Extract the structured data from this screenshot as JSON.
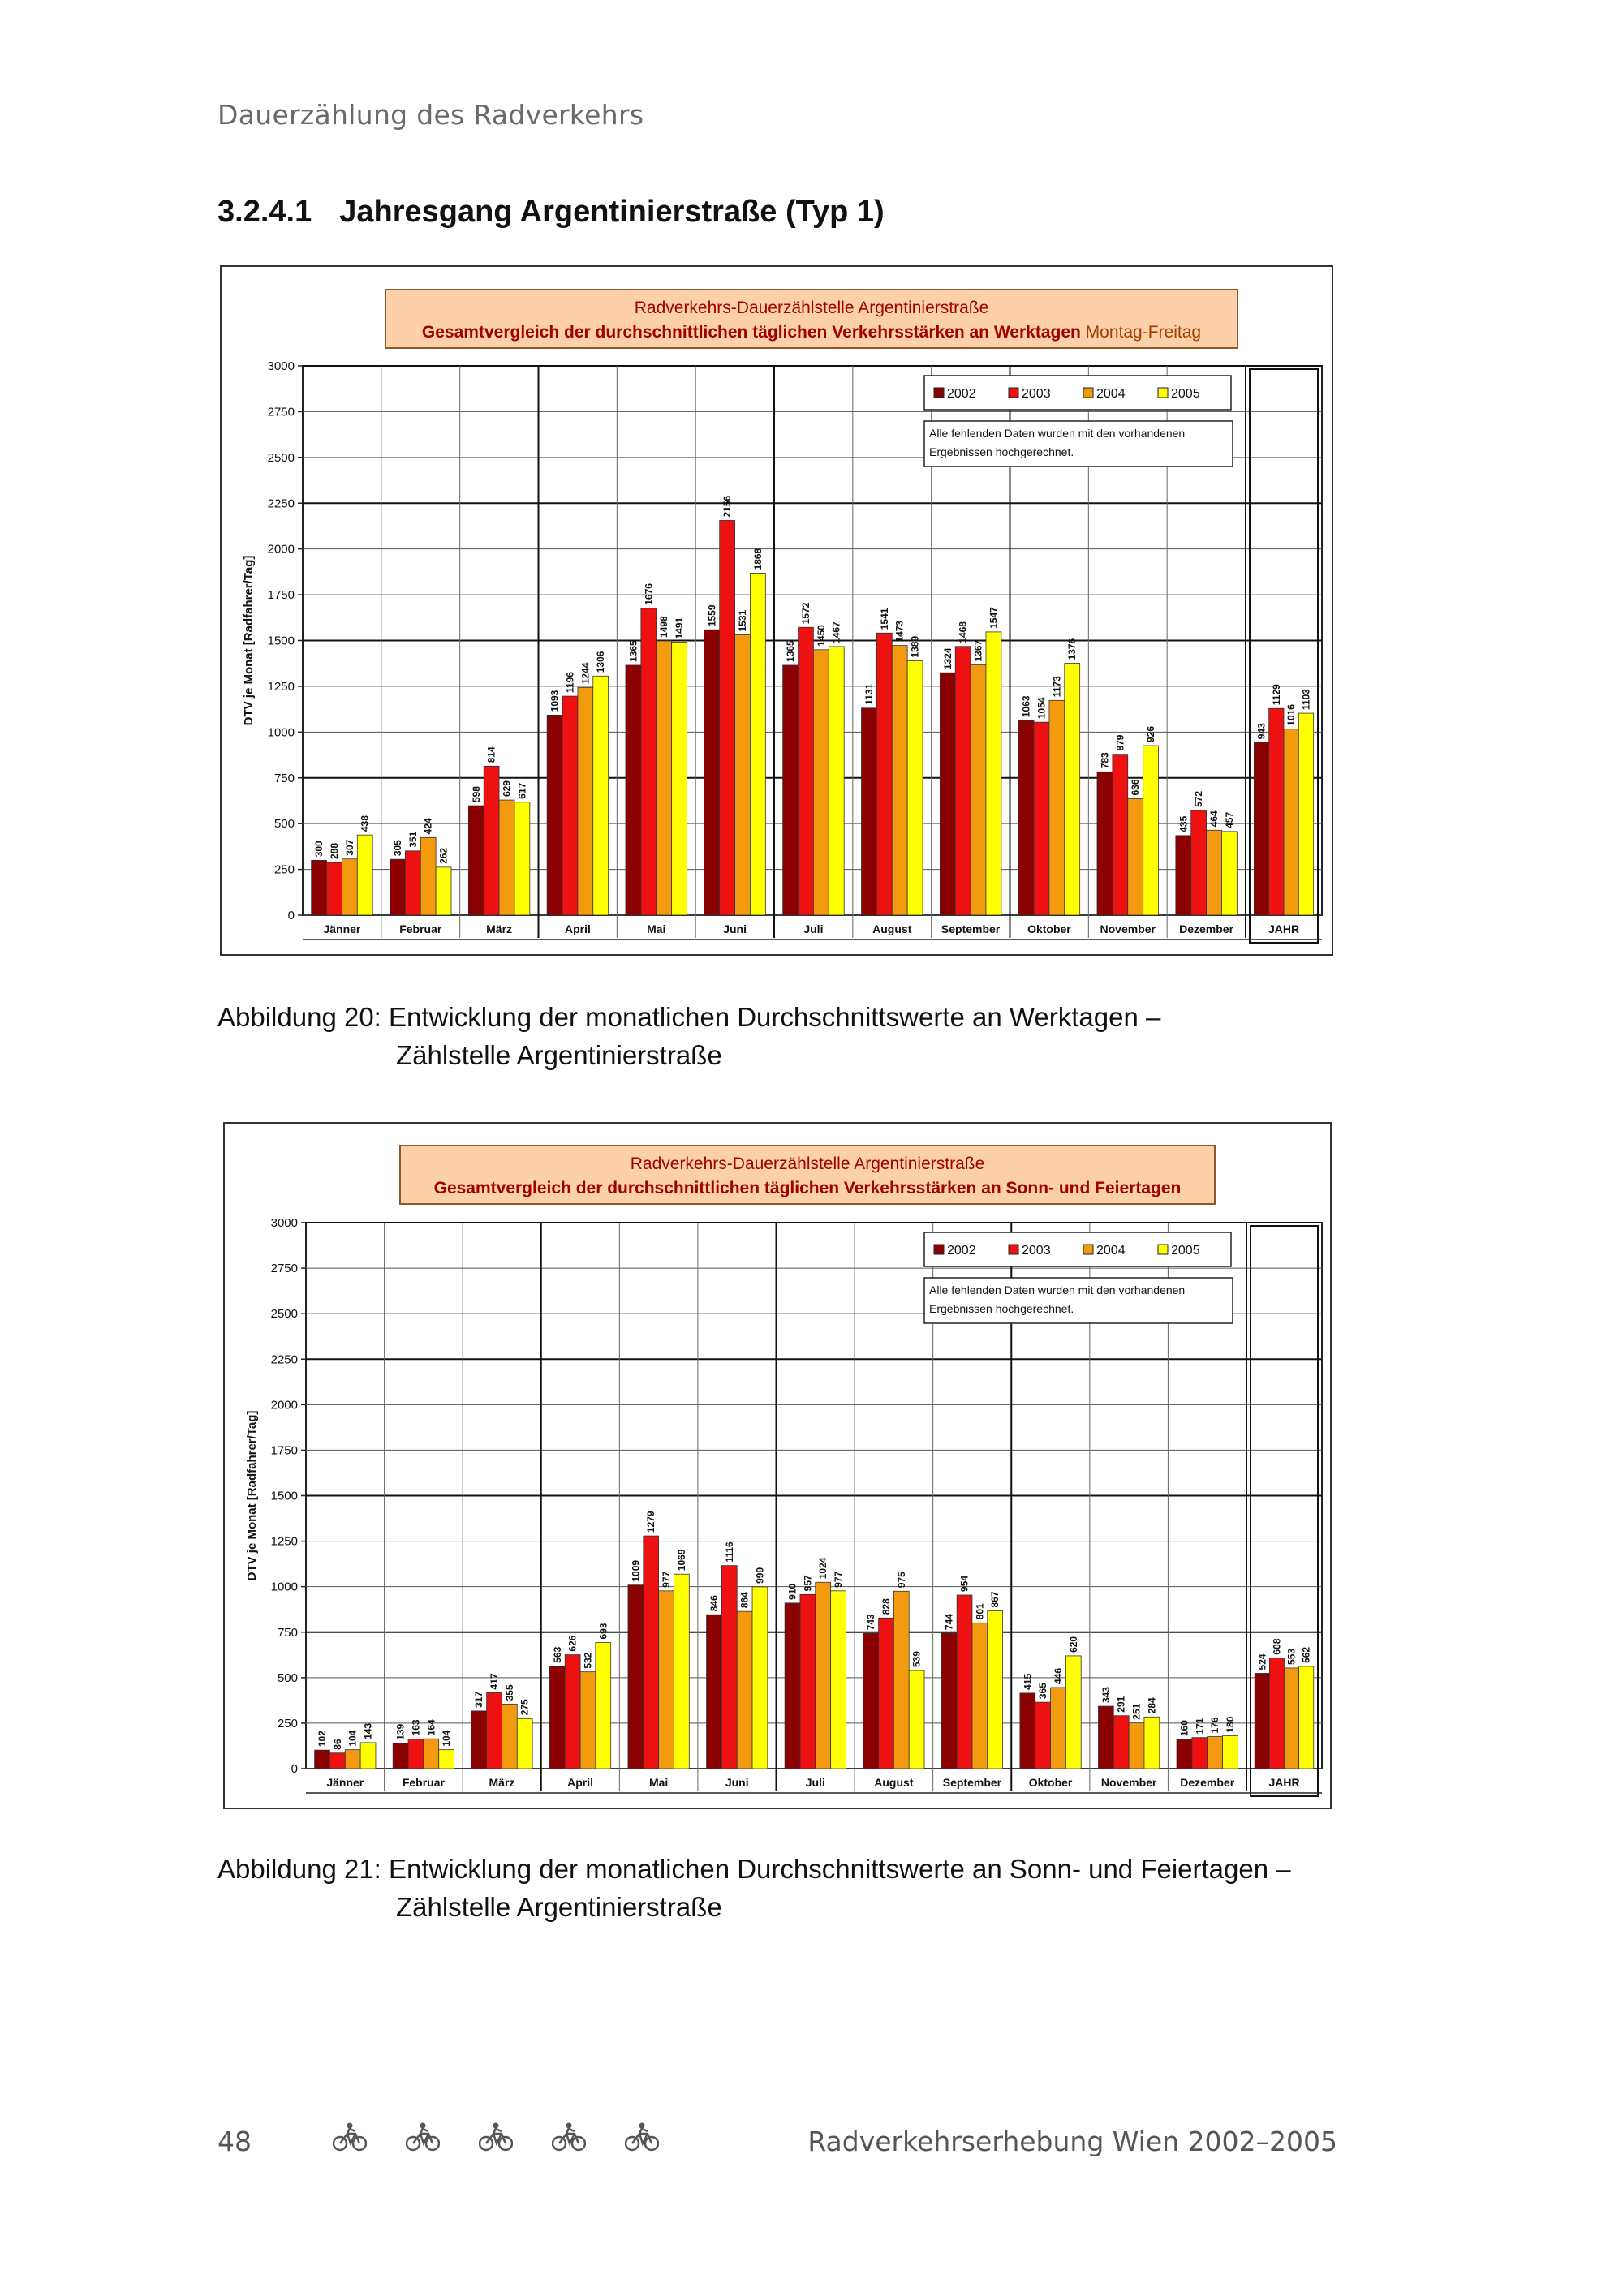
{
  "header": {
    "running_title": "Dauerzählung des Radverkehrs"
  },
  "section": {
    "number": "3.2.4.1",
    "title": "Jahresgang Argentinierstraße (Typ 1)"
  },
  "figures": [
    {
      "caption_line1": "Abbildung 20: Entwicklung der monatlichen Durchschnittswerte an Werktagen –",
      "caption_line2": "Zählstelle Argentinierstraße",
      "chart_data": {
        "type": "bar",
        "title": "Radverkehrs-Dauerzählstelle Argentinierstraße",
        "subtitle": "Gesamtvergleich der durchschnittlichen täglichen Verkehrsstärken an Werktagen",
        "subtitle_suffix": " Montag-Freitag",
        "ylabel": "DTV je Monat  [Radfahrer/Tag]",
        "xlabel": "",
        "ylim": [
          0,
          3000
        ],
        "yticks": [
          0,
          250,
          500,
          750,
          1000,
          1250,
          1500,
          1750,
          2000,
          2250,
          2500,
          2750,
          3000
        ],
        "categories": [
          "Jänner",
          "Februar",
          "März",
          "April",
          "Mai",
          "Juni",
          "Juli",
          "August",
          "September",
          "Oktober",
          "November",
          "Dezember",
          "JAHR"
        ],
        "note": [
          "Alle fehlenden Daten wurden mit den vorhandenen",
          "Ergebnissen hochgerechnet."
        ],
        "legend_position": "top-right",
        "series": [
          {
            "name": "2002",
            "color": "#8b0000",
            "values": [
              300,
              305,
              598,
              1093,
              1365,
              1559,
              1365,
              1131,
              1324,
              1063,
              783,
              435,
              943
            ]
          },
          {
            "name": "2003",
            "color": "#ee1111",
            "values": [
              288,
              351,
              814,
              1196,
              1676,
              2156,
              1572,
              1541,
              1468,
              1054,
              879,
              572,
              1129
            ]
          },
          {
            "name": "2004",
            "color": "#f39a0e",
            "values": [
              307,
              424,
              629,
              1244,
              1498,
              1531,
              1450,
              1473,
              1367,
              1173,
              636,
              464,
              1016
            ]
          },
          {
            "name": "2005",
            "color": "#ffff00",
            "values": [
              438,
              262,
              617,
              1306,
              1491,
              1868,
              1467,
              1389,
              1547,
              1376,
              926,
              457,
              1103
            ]
          }
        ]
      }
    },
    {
      "caption_line1": "Abbildung 21: Entwicklung der monatlichen Durchschnittswerte an Sonn- und Feiertagen –",
      "caption_line2": "Zählstelle Argentinierstraße",
      "chart_data": {
        "type": "bar",
        "title": "Radverkehrs-Dauerzählstelle Argentinierstraße",
        "subtitle": "Gesamtvergleich der durchschnittlichen täglichen Verkehrsstärken an Sonn- und Feiertagen",
        "subtitle_suffix": "",
        "ylabel": "DTV je Monat  [Radfahrer/Tag]",
        "xlabel": "",
        "ylim": [
          0,
          3000
        ],
        "yticks": [
          0,
          250,
          500,
          750,
          1000,
          1250,
          1500,
          1750,
          2000,
          2250,
          2500,
          2750,
          3000
        ],
        "categories": [
          "Jänner",
          "Februar",
          "März",
          "April",
          "Mai",
          "Juni",
          "Juli",
          "August",
          "September",
          "Oktober",
          "November",
          "Dezember",
          "JAHR"
        ],
        "note": [
          "Alle fehlenden Daten wurden mit den vorhandenen",
          "Ergebnissen hochgerechnet."
        ],
        "legend_position": "top-right",
        "series": [
          {
            "name": "2002",
            "color": "#8b0000",
            "values": [
              102,
              139,
              317,
              563,
              1009,
              846,
              910,
              743,
              744,
              415,
              343,
              160,
              524
            ]
          },
          {
            "name": "2003",
            "color": "#ee1111",
            "values": [
              86,
              163,
              417,
              626,
              1279,
              1116,
              957,
              828,
              954,
              365,
              291,
              171,
              608
            ]
          },
          {
            "name": "2004",
            "color": "#f39a0e",
            "values": [
              104,
              164,
              355,
              532,
              977,
              864,
              1024,
              975,
              801,
              446,
              251,
              176,
              553
            ]
          },
          {
            "name": "2005",
            "color": "#ffff00",
            "values": [
              143,
              104,
              275,
              693,
              1069,
              999,
              977,
              539,
              867,
              620,
              284,
              180,
              562
            ]
          }
        ]
      }
    }
  ],
  "footer": {
    "page_number": "48",
    "publication_title": "Radverkehrserhebung Wien 2002–2005",
    "icon": "bicycle-icon"
  }
}
